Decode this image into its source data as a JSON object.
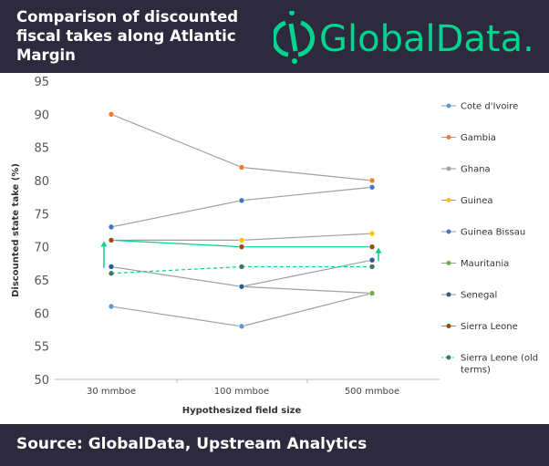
{
  "header": {
    "title": "Comparison of discounted fiscal takes along Atlantic Margin",
    "logo_text": "GlobalData."
  },
  "footer": {
    "source": "Source: GlobalData, Upstream Analytics"
  },
  "colors": {
    "header_bg": "#2d2a3e",
    "brand": "#00d48f",
    "line": "#a0a0a0"
  },
  "chart_data": {
    "type": "line",
    "title": "Comparison of discounted fiscal takes along Atlantic Margin",
    "xlabel": "Hypothesized field size",
    "ylabel": "Discounted state take (%)",
    "categories": [
      "30 mmboe",
      "100 mmboe",
      "500 mmboe"
    ],
    "ylim": [
      50,
      95
    ],
    "yticks": [
      "50",
      "55",
      "60",
      "65",
      "70",
      "75",
      "80",
      "85",
      "90",
      "95"
    ],
    "grid": false,
    "legend_position": "right",
    "series": [
      {
        "name": "Cote d'Ivoire",
        "color": "#5b9bd5",
        "values": [
          61,
          58,
          63
        ]
      },
      {
        "name": "Gambia",
        "color": "#ed7d31",
        "values": [
          90,
          82,
          80
        ]
      },
      {
        "name": "Ghana",
        "color": "#a5a5a5",
        "values": [
          71,
          null,
          null
        ]
      },
      {
        "name": "Guinea",
        "color": "#ffc000",
        "values": [
          71,
          71,
          72
        ]
      },
      {
        "name": "Guinea Bissau",
        "color": "#4472c4",
        "values": [
          73,
          77,
          79
        ]
      },
      {
        "name": "Mauritania",
        "color": "#70ad47",
        "values": [
          null,
          64,
          63
        ]
      },
      {
        "name": "Senegal",
        "color": "#255e91",
        "values": [
          67,
          64,
          68
        ]
      },
      {
        "name": "Sierra Leone",
        "color": "#9e480e",
        "values": [
          71,
          70,
          70
        ]
      },
      {
        "name": "Sierra Leone (old terms)",
        "color": "#43766a",
        "values": [
          66,
          67,
          67
        ],
        "dashed": true
      }
    ]
  }
}
